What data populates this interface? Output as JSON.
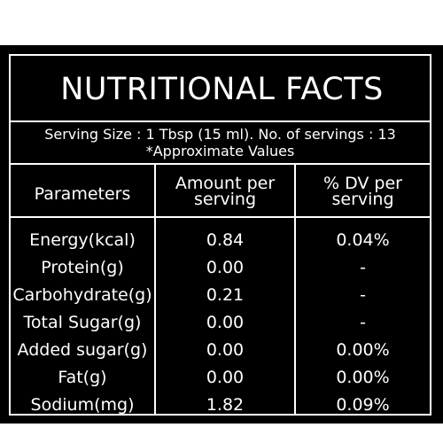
{
  "title": "NUTRITIONAL FACTS",
  "serving": {
    "line1": "Serving Size : 1 Tbsp (15 ml). No. of servings : 13",
    "line2": "*Approximate Values"
  },
  "headers": {
    "parameters": "Parameters",
    "amount_line1": "Amount per",
    "amount_line2": "serving",
    "dv_line1": "% DV per",
    "dv_line2": "serving"
  },
  "rows": [
    {
      "parameter": "Energy(kcal)",
      "amount": "0.84",
      "dv": "0.04%"
    },
    {
      "parameter": "Protein(g)",
      "amount": "0.00",
      "dv": "-"
    },
    {
      "parameter": "Carbohydrate(g)",
      "amount": "0.21",
      "dv": "-"
    },
    {
      "parameter": "Total Sugar(g)",
      "amount": "0.00",
      "dv": "-"
    },
    {
      "parameter": "Added sugar(g)",
      "amount": "0.00",
      "dv": "0.00%"
    },
    {
      "parameter": "Fat(g)",
      "amount": "0.00",
      "dv": "0.00%"
    },
    {
      "parameter": "Sodium(mg)",
      "amount": "1.82",
      "dv": "0.09%"
    }
  ]
}
